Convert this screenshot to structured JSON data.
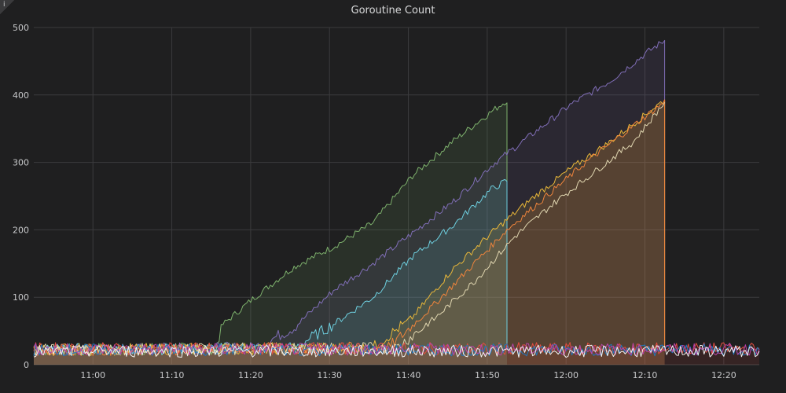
{
  "panel": {
    "info_icon": "i",
    "title": "Goroutine Count"
  },
  "chart_data": {
    "type": "area",
    "title": "Goroutine Count",
    "xlabel": "",
    "ylabel": "",
    "x_range_minutes": [
      10.92,
      11.42
    ],
    "ylim": [
      0,
      500
    ],
    "y_ticks": [
      0,
      100,
      200,
      300,
      400,
      500
    ],
    "x_tick_labels": [
      "11:00",
      "11:10",
      "11:20",
      "11:30",
      "11:40",
      "11:50",
      "12:00",
      "12:10",
      "12:20"
    ],
    "grid": true,
    "legend": "none",
    "series": [
      {
        "color": "#7eb26d",
        "fill": true,
        "points": [
          [
            "10:52",
            22
          ],
          [
            "11:15",
            24
          ],
          [
            "11:16",
            60
          ],
          [
            "11:18",
            80
          ],
          [
            "11:20",
            100
          ],
          [
            "11:25",
            145
          ],
          [
            "11:30",
            175
          ],
          [
            "11:35",
            210
          ],
          [
            "11:40",
            280
          ],
          [
            "11:45",
            330
          ],
          [
            "11:50",
            375
          ],
          [
            "11:52",
            392
          ],
          [
            "11:52",
            25
          ]
        ]
      },
      {
        "color": "#806eb7",
        "fill": true,
        "points": [
          [
            "10:52",
            22
          ],
          [
            "11:20",
            25
          ],
          [
            "11:25",
            55
          ],
          [
            "11:30",
            110
          ],
          [
            "11:35",
            150
          ],
          [
            "11:40",
            195
          ],
          [
            "11:45",
            240
          ],
          [
            "11:50",
            295
          ],
          [
            "11:55",
            340
          ],
          [
            "12:00",
            385
          ],
          [
            "12:05",
            420
          ],
          [
            "12:10",
            465
          ],
          [
            "12:12",
            481
          ],
          [
            "12:12",
            25
          ]
        ]
      },
      {
        "color": "#6ed0e0",
        "fill": true,
        "points": [
          [
            "10:52",
            22
          ],
          [
            "11:25",
            25
          ],
          [
            "11:30",
            60
          ],
          [
            "11:35",
            100
          ],
          [
            "11:40",
            160
          ],
          [
            "11:45",
            205
          ],
          [
            "11:50",
            260
          ],
          [
            "11:52",
            273
          ],
          [
            "11:52",
            25
          ]
        ]
      },
      {
        "color": "#eab839",
        "fill": true,
        "points": [
          [
            "10:52",
            22
          ],
          [
            "11:35",
            25
          ],
          [
            "11:40",
            70
          ],
          [
            "11:45",
            140
          ],
          [
            "11:50",
            195
          ],
          [
            "11:55",
            245
          ],
          [
            "12:00",
            290
          ],
          [
            "12:05",
            330
          ],
          [
            "12:10",
            375
          ],
          [
            "12:12",
            393
          ],
          [
            "12:12",
            25
          ]
        ]
      },
      {
        "color": "#ef843c",
        "fill": true,
        "points": [
          [
            "10:52",
            22
          ],
          [
            "11:37",
            25
          ],
          [
            "11:42",
            80
          ],
          [
            "11:47",
            140
          ],
          [
            "11:52",
            200
          ],
          [
            "11:57",
            250
          ],
          [
            "12:02",
            300
          ],
          [
            "12:07",
            345
          ],
          [
            "12:12",
            390
          ],
          [
            "12:12",
            25
          ]
        ]
      },
      {
        "color": "#e0d6b0",
        "fill": false,
        "points": [
          [
            "10:52",
            22
          ],
          [
            "11:38",
            25
          ],
          [
            "11:43",
            70
          ],
          [
            "11:48",
            125
          ],
          [
            "11:53",
            190
          ],
          [
            "11:58",
            240
          ],
          [
            "12:03",
            285
          ],
          [
            "12:08",
            330
          ],
          [
            "12:12",
            389
          ]
        ]
      },
      {
        "color": "#e24d42",
        "fill": true,
        "noise_base": 24,
        "points": [
          [
            "10:52",
            24
          ],
          [
            "12:24",
            24
          ]
        ]
      },
      {
        "color": "#1f78c1",
        "fill": false,
        "noise_base": 22,
        "points": [
          [
            "10:52",
            22
          ],
          [
            "12:24",
            22
          ]
        ]
      },
      {
        "color": "#ba43a9",
        "fill": false,
        "noise_base": 23,
        "points": [
          [
            "10:52",
            23
          ],
          [
            "12:24",
            23
          ]
        ]
      },
      {
        "color": "#f2f2f2",
        "fill": false,
        "noise_base": 20,
        "points": [
          [
            "10:52",
            20
          ],
          [
            "12:24",
            20
          ]
        ]
      }
    ]
  }
}
